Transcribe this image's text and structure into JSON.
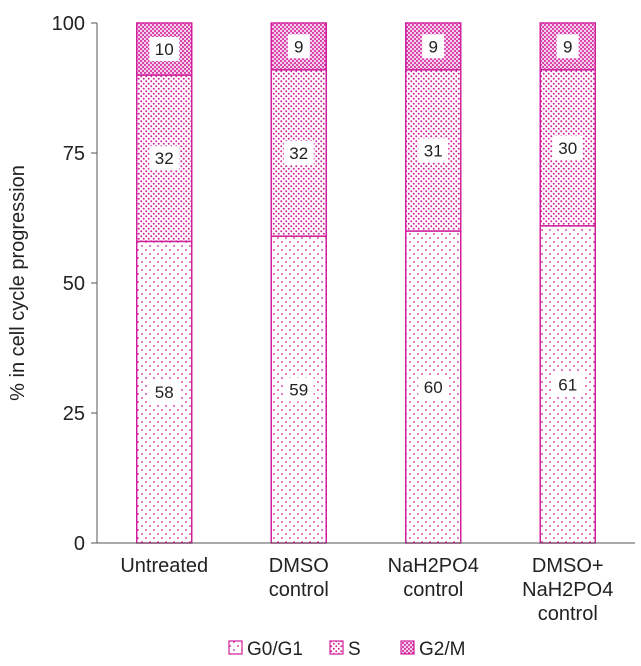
{
  "colors": {
    "bar_stroke": "#d0209b",
    "dot": "#d0209b",
    "axis": "#555555",
    "text": "#222222"
  },
  "chart_data": {
    "type": "bar",
    "stacked": true,
    "title": "",
    "xlabel": "",
    "ylabel": "% in cell cycle progression",
    "ylim": [
      0,
      100
    ],
    "yticks": [
      0,
      25,
      50,
      75,
      100
    ],
    "categories": [
      [
        "Untreated"
      ],
      [
        "DMSO",
        "control"
      ],
      [
        "NaH2PO4",
        "control"
      ],
      [
        "DMSO+",
        "NaH2PO4",
        "control"
      ]
    ],
    "series": [
      {
        "name": "G0/G1",
        "pattern": "sparse-dots",
        "values": [
          58,
          59,
          60,
          61
        ]
      },
      {
        "name": "S",
        "pattern": "medium-dots",
        "values": [
          32,
          32,
          31,
          30
        ]
      },
      {
        "name": "G2/M",
        "pattern": "dense-dots",
        "values": [
          10,
          9,
          9,
          9
        ]
      }
    ],
    "data_labels": true,
    "grid": false,
    "legend": {
      "position": "bottom"
    }
  }
}
